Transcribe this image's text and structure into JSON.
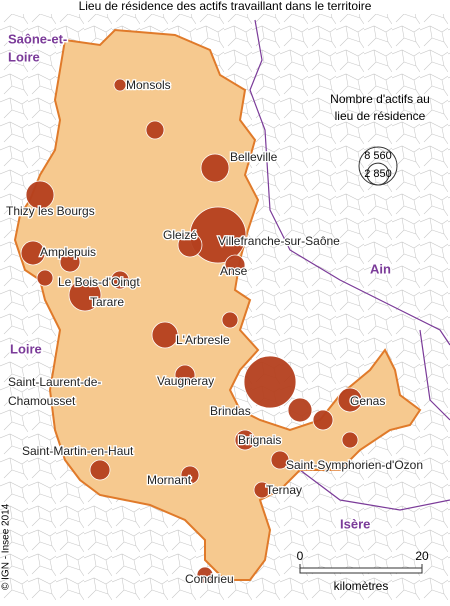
{
  "title": "Lieu de résidence des actifs travaillant dans le territoire",
  "regions": [
    [
      "Saône-et-",
      "Loire"
    ],
    [
      "Ain"
    ],
    [
      "Loire"
    ],
    [
      "Isère"
    ]
  ],
  "cities": [
    "Monsols",
    "Belleville",
    "Thizy les Bourgs",
    "Amplepuis",
    "Gleizé",
    "Villefranche-sur-Saône",
    "Anse",
    "Le Bois-d'Oingt",
    "Tarare",
    "L'Arbresle",
    "Saint-Laurent-de-",
    "Chamousset",
    "Vaugneray",
    "Brindas",
    "Brignais",
    "Genas",
    "Saint-Martin-en-Haut",
    "Mornant",
    "Saint-Symphorien-d'Ozon",
    "Ternay",
    "Condrieu"
  ],
  "legend": {
    "title": [
      "Nombre d'actifs au",
      "lieu de résidence"
    ],
    "sizes": [
      {
        "value": 8560,
        "label": "8 560"
      },
      {
        "value": 2850,
        "label": "2 850"
      }
    ]
  },
  "bubbles": [
    18600,
    16000,
    3400,
    4650,
    4650,
    3400,
    6070,
    4000,
    3400,
    2370,
    3400,
    1920,
    1920,
    1520,
    1520,
    850,
    2370,
    2370,
    1920,
    2370,
    1520,
    2370,
    1520,
    1920,
    2370,
    1520
  ],
  "scale": {
    "ticks": [
      0,
      20
    ],
    "unit": "kilomètres"
  },
  "credit": "© IGN - Insee 2014"
}
